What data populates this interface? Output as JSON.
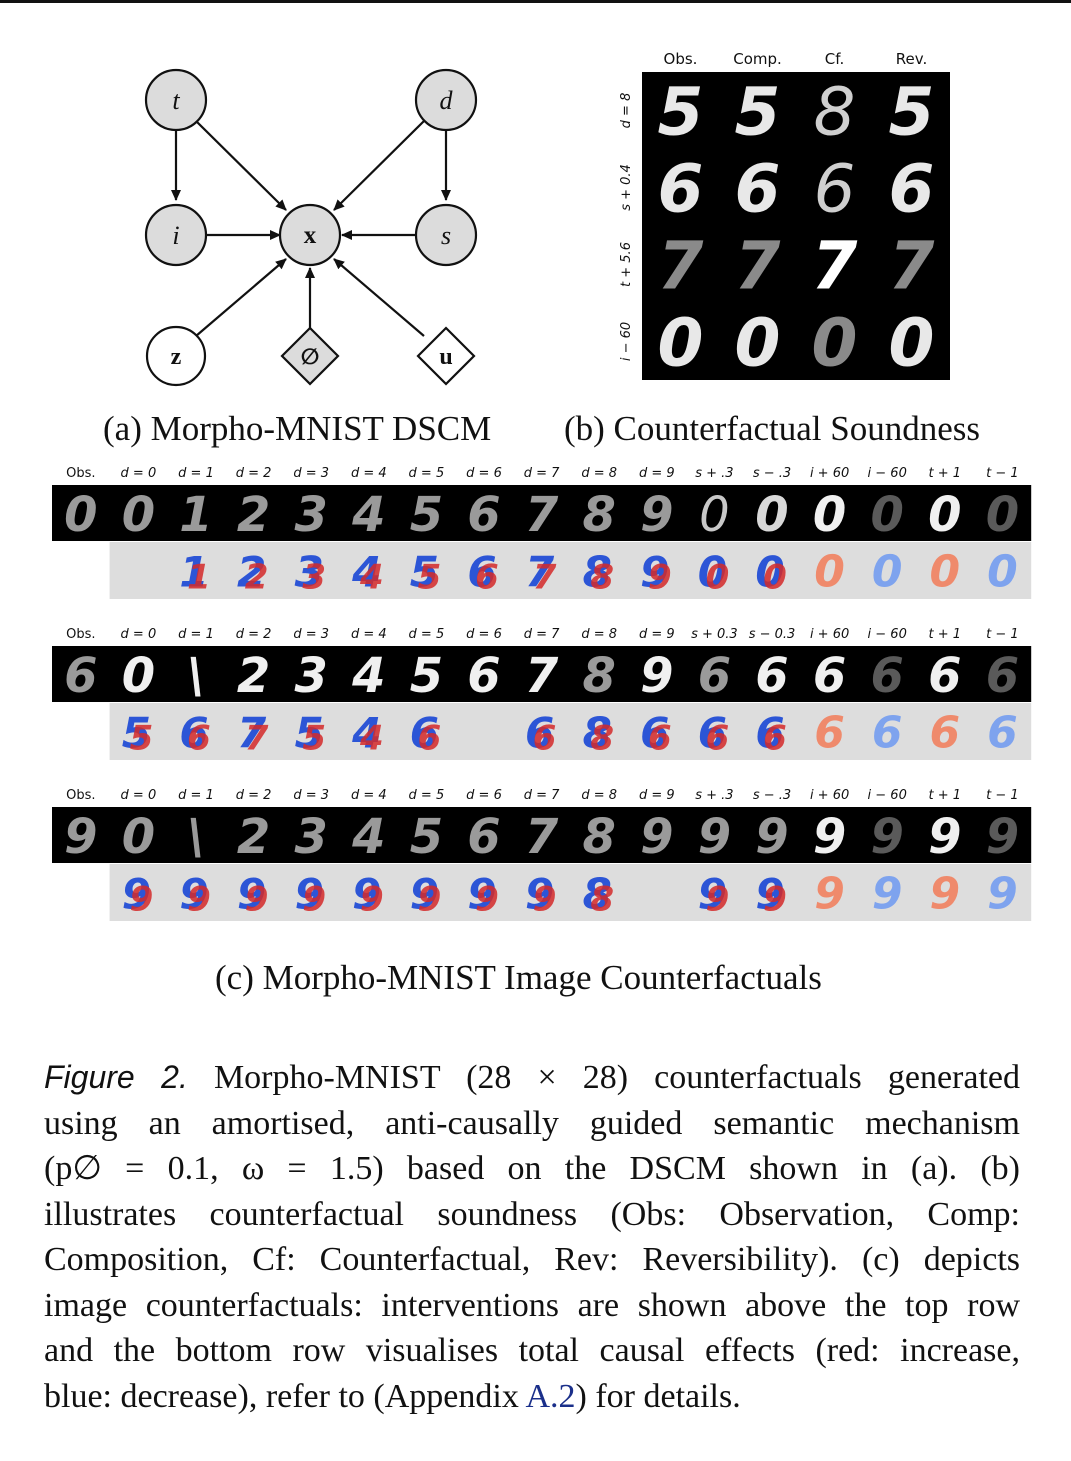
{
  "dag": {
    "nodes": [
      {
        "id": "t",
        "label": "t",
        "style": "filled"
      },
      {
        "id": "d",
        "label": "d",
        "style": "filled"
      },
      {
        "id": "i",
        "label": "i",
        "style": "filled"
      },
      {
        "id": "x",
        "label": "x",
        "style": "filled"
      },
      {
        "id": "s",
        "label": "s",
        "style": "filled"
      },
      {
        "id": "z",
        "label": "z",
        "style": "open"
      },
      {
        "id": "null",
        "label": "∅",
        "style": "diamond"
      },
      {
        "id": "u",
        "label": "u",
        "style": "diamond"
      }
    ],
    "edges": [
      [
        "t",
        "i"
      ],
      [
        "t",
        "x"
      ],
      [
        "d",
        "x"
      ],
      [
        "d",
        "s"
      ],
      [
        "i",
        "x"
      ],
      [
        "s",
        "x"
      ],
      [
        "z",
        "x"
      ],
      [
        "null",
        "x"
      ],
      [
        "u",
        "x"
      ]
    ]
  },
  "soundness": {
    "col_headers": [
      "Obs.",
      "Comp.",
      "Cf.",
      "Rev."
    ],
    "row_labels": [
      "d = 8",
      "s + 0.4",
      "t + 5.6",
      "i − 60"
    ],
    "digits": [
      [
        "5",
        "5",
        "8",
        "5"
      ],
      [
        "6",
        "6",
        "6",
        "6"
      ],
      [
        "7",
        "7",
        "7",
        "7"
      ],
      [
        "0",
        "0",
        "0",
        "0"
      ]
    ],
    "cell_style": [
      [
        "bright",
        "bright",
        "thin",
        "bright"
      ],
      [
        "bright",
        "bright",
        "thin",
        "bright"
      ],
      [
        "dim",
        "dim",
        "bold",
        "dim"
      ],
      [
        "bright",
        "bright",
        "dim",
        "bright"
      ]
    ]
  },
  "subcaptions": {
    "a": "(a) Morpho-MNIST DSCM",
    "b": "(b) Counterfactual Soundness",
    "c": "(c) Morpho-MNIST Image Counterfactuals"
  },
  "counterfactual_panels": [
    {
      "headers": [
        "Obs.",
        "d = 0",
        "d = 1",
        "d = 2",
        "d = 3",
        "d = 4",
        "d = 5",
        "d = 6",
        "d = 7",
        "d = 8",
        "d = 9",
        "s + .3",
        "s − .3",
        "i + 60",
        "i − 60",
        "t + 1",
        "t − 1"
      ],
      "digits": [
        "0",
        "0",
        "1",
        "2",
        "3",
        "4",
        "5",
        "6",
        "7",
        "8",
        "9",
        "0",
        "0",
        "0",
        "0",
        "0",
        "0"
      ],
      "top_style": [
        "grey",
        "grey",
        "grey",
        "grey",
        "grey",
        "grey",
        "grey",
        "grey",
        "grey",
        "grey",
        "grey",
        "thin",
        "thick",
        "white",
        "dark",
        "white",
        "dark"
      ],
      "effects": [
        "",
        "",
        "1",
        "2",
        "3",
        "4",
        "5",
        "6",
        "7",
        "8",
        "9",
        "0",
        "0",
        "0",
        "0",
        "0",
        "0"
      ],
      "effect_style": [
        "none",
        "none",
        "mix",
        "mix",
        "mix",
        "mix",
        "mix",
        "mix",
        "mix",
        "mix",
        "mix",
        "mix",
        "mix",
        "red",
        "blue",
        "red",
        "blue"
      ]
    },
    {
      "headers": [
        "Obs.",
        "d = 0",
        "d = 1",
        "d = 2",
        "d = 3",
        "d = 4",
        "d = 5",
        "d = 6",
        "d = 7",
        "d = 8",
        "d = 9",
        "s + 0.3",
        "s − 0.3",
        "i + 60",
        "i − 60",
        "t + 1",
        "t − 1"
      ],
      "digits": [
        "6",
        "0",
        "\\",
        "2",
        "3",
        "4",
        "5",
        "6",
        "7",
        "8",
        "9",
        "6",
        "6",
        "6",
        "6",
        "6",
        "6"
      ],
      "top_style": [
        "grey",
        "white",
        "white",
        "white",
        "white",
        "white",
        "white",
        "white",
        "white",
        "grey",
        "white",
        "grey",
        "white",
        "white",
        "dark",
        "white",
        "dark"
      ],
      "effects": [
        "",
        "5",
        "6",
        "7",
        "5",
        "4",
        "6",
        "",
        "6",
        "8",
        "6",
        "6",
        "6",
        "6",
        "6",
        "6",
        "6"
      ],
      "effect_style": [
        "none",
        "mix",
        "mix",
        "mix",
        "mix",
        "mix",
        "mix",
        "none",
        "mix",
        "mix",
        "mix",
        "mix",
        "mix",
        "red",
        "blue",
        "red",
        "blue"
      ]
    },
    {
      "headers": [
        "Obs.",
        "d = 0",
        "d = 1",
        "d = 2",
        "d = 3",
        "d = 4",
        "d = 5",
        "d = 6",
        "d = 7",
        "d = 8",
        "d = 9",
        "s + .3",
        "s − .3",
        "i + 60",
        "i − 60",
        "t + 1",
        "t − 1"
      ],
      "digits": [
        "9",
        "0",
        "\\",
        "2",
        "3",
        "4",
        "5",
        "6",
        "7",
        "8",
        "9",
        "9",
        "9",
        "9",
        "9",
        "9",
        "9"
      ],
      "top_style": [
        "grey",
        "grey",
        "grey",
        "grey",
        "grey",
        "grey",
        "grey",
        "grey",
        "grey",
        "grey",
        "grey",
        "grey",
        "grey",
        "white",
        "dark",
        "white",
        "dark"
      ],
      "effects": [
        "",
        "9",
        "9",
        "9",
        "9",
        "9",
        "9",
        "9",
        "9",
        "8",
        "",
        "9",
        "9",
        "9",
        "9",
        "9",
        "9"
      ],
      "effect_style": [
        "none",
        "mix",
        "mix",
        "mix",
        "mix",
        "mix",
        "mix",
        "mix",
        "mix",
        "mix",
        "none",
        "mix",
        "mix",
        "red",
        "blue",
        "red",
        "blue"
      ]
    }
  ],
  "caption": {
    "label": "Figure 2.",
    "lines": [
      " Morpho-MNIST (28 × 28) counterfactuals generated",
      "using an amortised, anti-causally guided semantic mechanism",
      "(p∅ = 0.1, ω = 1.5) based on the DSCM shown in (a).  (b)",
      "illustrates counterfactual soundness (Obs: Observation, Comp:",
      "Composition, Cf: Counterfactual, Rev: Reversibility). (c) depicts",
      "image counterfactuals: interventions are shown above the top row",
      "and the bottom row visualises total causal effects (red: increase,",
      "blue: decrease), refer to (Appendix ",
      "A.2",
      ") for details."
    ]
  },
  "colors": {
    "node_fill": "#dcdcdc",
    "effect_bg": "#dddddd",
    "increase": "#d42a2a",
    "decrease": "#2c55d6",
    "link": "#1a2f8a"
  }
}
